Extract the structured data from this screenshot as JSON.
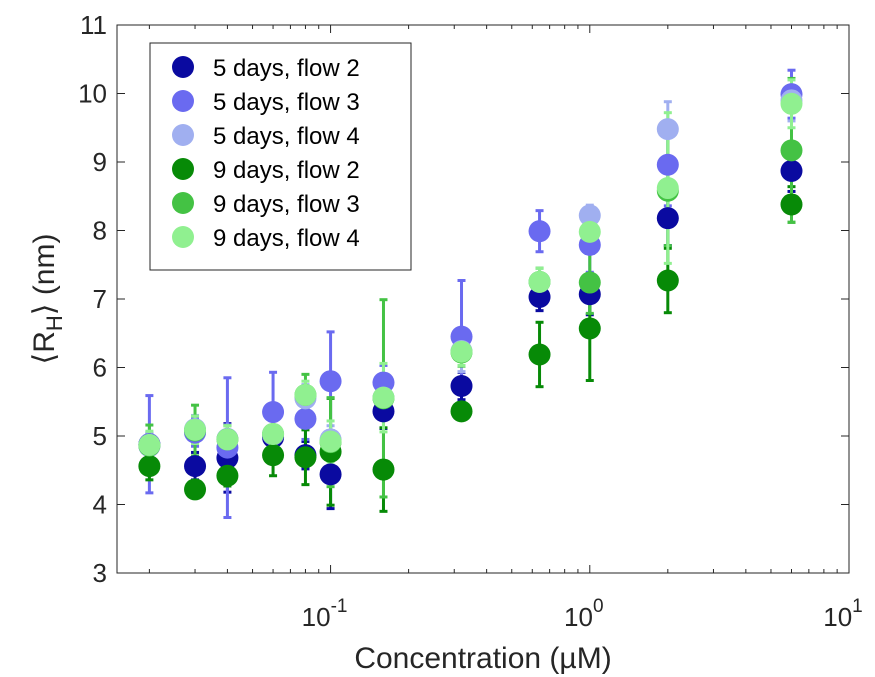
{
  "chart_data": {
    "type": "scatter",
    "title": "",
    "xlabel": "Concentration (µM)",
    "ylabel_prefix": "⟨R",
    "ylabel_sub": "H",
    "ylabel_suffix": "⟩ (nm)",
    "xscale": "log",
    "xlim": [
      0.015,
      10
    ],
    "ylim": [
      3,
      11
    ],
    "grid": false,
    "legend_position": "top-left",
    "x_ticks": [
      {
        "value": 0.1,
        "base": "10",
        "exp": "-1"
      },
      {
        "value": 1,
        "base": "10",
        "exp": "0"
      },
      {
        "value": 10,
        "base": "10",
        "exp": "1"
      }
    ],
    "y_ticks": [
      3,
      4,
      5,
      6,
      7,
      8,
      9,
      10,
      11
    ],
    "series": [
      {
        "name": "5 days, flow 2",
        "color": "#0a0aa0",
        "points": [
          {
            "x": 0.02,
            "y": 4.88,
            "err": 0.15
          },
          {
            "x": 0.03,
            "y": 4.56,
            "err": 0.2
          },
          {
            "x": 0.04,
            "y": 4.68,
            "err": 0.5
          },
          {
            "x": 0.06,
            "y": 4.98,
            "err": 0.15
          },
          {
            "x": 0.08,
            "y": 4.72,
            "err": 0.2
          },
          {
            "x": 0.1,
            "y": 4.44,
            "err": 0.5
          },
          {
            "x": 0.16,
            "y": 5.36,
            "err": 0.25
          },
          {
            "x": 0.32,
            "y": 5.73,
            "err": 0.2
          },
          {
            "x": 0.64,
            "y": 7.03,
            "err": 0.2
          },
          {
            "x": 1.0,
            "y": 7.07,
            "err": 0.3
          },
          {
            "x": 2.0,
            "y": 8.18,
            "err": 0.4
          },
          {
            "x": 6.0,
            "y": 8.87,
            "err": 0.3
          }
        ]
      },
      {
        "name": "5 days, flow 3",
        "color": "#6a6af0",
        "points": [
          {
            "x": 0.02,
            "y": 4.88,
            "err": 0.71
          },
          {
            "x": 0.03,
            "y": 5.05,
            "err": 0.2
          },
          {
            "x": 0.04,
            "y": 4.83,
            "err": 1.02
          },
          {
            "x": 0.06,
            "y": 5.35,
            "err": 0.58
          },
          {
            "x": 0.08,
            "y": 5.25,
            "err": 0.3
          },
          {
            "x": 0.1,
            "y": 5.8,
            "err": 0.72
          },
          {
            "x": 0.16,
            "y": 5.78,
            "err": 0.25
          },
          {
            "x": 0.32,
            "y": 6.45,
            "err": 0.82
          },
          {
            "x": 0.64,
            "y": 7.99,
            "err": 0.3
          },
          {
            "x": 1.0,
            "y": 7.79,
            "err": 0.4
          },
          {
            "x": 2.0,
            "y": 8.96,
            "err": 0.6
          },
          {
            "x": 6.0,
            "y": 9.99,
            "err": 0.35
          }
        ]
      },
      {
        "name": "5 days, flow 4",
        "color": "#a0aff0",
        "points": [
          {
            "x": 0.02,
            "y": 4.85,
            "err": 0.2
          },
          {
            "x": 0.03,
            "y": 5.1,
            "err": 0.2
          },
          {
            "x": 0.04,
            "y": 4.96,
            "err": 0.2
          },
          {
            "x": 0.06,
            "y": 5.02,
            "err": 0.2
          },
          {
            "x": 0.08,
            "y": 5.55,
            "err": 0.2
          },
          {
            "x": 0.1,
            "y": 4.95,
            "err": 0.2
          },
          {
            "x": 0.16,
            "y": 5.56,
            "err": 0.3
          },
          {
            "x": 0.32,
            "y": 6.24,
            "err": 0.3
          },
          {
            "x": 0.64,
            "y": 7.25,
            "err": 0.2
          },
          {
            "x": 1.0,
            "y": 8.22,
            "err": 0.15
          },
          {
            "x": 2.0,
            "y": 9.48,
            "err": 0.4
          },
          {
            "x": 6.0,
            "y": 9.9,
            "err": 0.3
          }
        ]
      },
      {
        "name": "9 days, flow 2",
        "color": "#078a07",
        "points": [
          {
            "x": 0.02,
            "y": 4.56,
            "err": 0.2
          },
          {
            "x": 0.03,
            "y": 4.22,
            "err": 0.1
          },
          {
            "x": 0.04,
            "y": 4.42,
            "err": 0.15
          },
          {
            "x": 0.06,
            "y": 4.72,
            "err": 0.3
          },
          {
            "x": 0.08,
            "y": 4.69,
            "err": 0.4
          },
          {
            "x": 0.1,
            "y": 4.77,
            "err": 0.78
          },
          {
            "x": 0.16,
            "y": 4.51,
            "err": 0.61
          },
          {
            "x": 0.32,
            "y": 5.36,
            "err": 0.1
          },
          {
            "x": 0.64,
            "y": 6.19,
            "err": 0.47
          },
          {
            "x": 1.0,
            "y": 6.57,
            "err": 0.76
          },
          {
            "x": 2.0,
            "y": 7.27,
            "err": 0.47
          },
          {
            "x": 6.0,
            "y": 8.38,
            "err": 0.26
          }
        ]
      },
      {
        "name": "9 days, flow 3",
        "color": "#44c244",
        "points": [
          {
            "x": 0.02,
            "y": 4.86,
            "err": 0.3
          },
          {
            "x": 0.03,
            "y": 5.08,
            "err": 0.37
          },
          {
            "x": 0.04,
            "y": 4.95,
            "err": 0.2
          },
          {
            "x": 0.06,
            "y": 5.03,
            "err": 0.3
          },
          {
            "x": 0.08,
            "y": 5.6,
            "err": 0.3
          },
          {
            "x": 0.1,
            "y": 4.91,
            "err": 0.65
          },
          {
            "x": 0.16,
            "y": 5.55,
            "err": 1.44
          },
          {
            "x": 0.32,
            "y": 6.22,
            "err": 0.2
          },
          {
            "x": 0.64,
            "y": 7.25,
            "err": 0.2
          },
          {
            "x": 1.0,
            "y": 7.24,
            "err": 0.45
          },
          {
            "x": 2.0,
            "y": 8.58,
            "err": 0.8
          },
          {
            "x": 6.0,
            "y": 9.17,
            "err": 1.05
          }
        ]
      },
      {
        "name": "9 days, flow 4",
        "color": "#90f090",
        "points": [
          {
            "x": 0.02,
            "y": 4.87,
            "err": 0.2
          },
          {
            "x": 0.03,
            "y": 5.09,
            "err": 0.2
          },
          {
            "x": 0.04,
            "y": 4.95,
            "err": 0.2
          },
          {
            "x": 0.06,
            "y": 5.03,
            "err": 0.2
          },
          {
            "x": 0.08,
            "y": 5.6,
            "err": 0.2
          },
          {
            "x": 0.1,
            "y": 4.92,
            "err": 0.3
          },
          {
            "x": 0.16,
            "y": 5.56,
            "err": 0.5
          },
          {
            "x": 0.32,
            "y": 6.23,
            "err": 0.2
          },
          {
            "x": 0.64,
            "y": 7.25,
            "err": 0.2
          },
          {
            "x": 1.0,
            "y": 7.98,
            "err": 0.3
          },
          {
            "x": 2.0,
            "y": 8.62,
            "err": 1.1
          },
          {
            "x": 6.0,
            "y": 9.85,
            "err": 0.35
          }
        ]
      }
    ]
  }
}
